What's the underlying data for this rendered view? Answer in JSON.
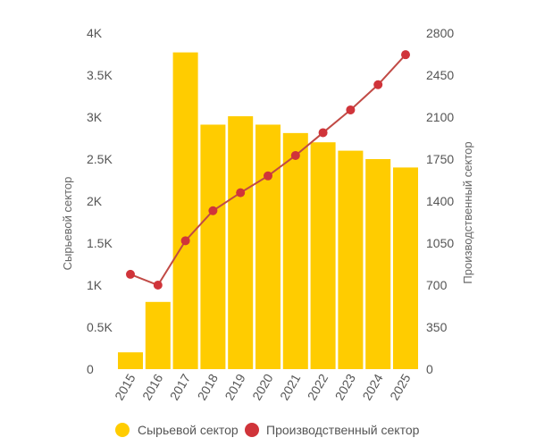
{
  "chart_data": {
    "type": "bar",
    "categories": [
      "2015",
      "2016",
      "2017",
      "2018",
      "2019",
      "2020",
      "2021",
      "2022",
      "2023",
      "2024",
      "2025"
    ],
    "series": [
      {
        "name": "Сырьевой сектор",
        "type": "bar",
        "axis": "left",
        "color": "#FFCC00",
        "values": [
          200,
          800,
          3770,
          2910,
          3010,
          2910,
          2810,
          2700,
          2600,
          2500,
          2400
        ]
      },
      {
        "name": "Производственный сектор",
        "type": "line",
        "axis": "right",
        "color": "#D0343A",
        "line_color": "#C14A45",
        "values": [
          790,
          700,
          1070,
          1320,
          1470,
          1610,
          1780,
          1970,
          2160,
          2370,
          2620
        ]
      }
    ],
    "ylabel": "Сырьевой сектор",
    "ylabel_right": "Производственный сектор",
    "ylim": [
      0,
      4000
    ],
    "ylim_right": [
      0,
      2800
    ],
    "yticks": [
      0,
      500,
      1000,
      1500,
      2000,
      2500,
      3000,
      3500,
      4000
    ],
    "yticklabels": [
      "0",
      "0.5K",
      "1K",
      "1.5K",
      "2K",
      "2.5K",
      "3K",
      "3.5K",
      "4K"
    ],
    "yticks_right": [
      0,
      350,
      700,
      1050,
      1400,
      1750,
      2100,
      2450,
      2800
    ],
    "yticklabels_right": [
      "0",
      "350",
      "700",
      "1050",
      "1400",
      "1750",
      "2100",
      "2450",
      "2800"
    ],
    "grid": false,
    "legend": "bottom"
  }
}
